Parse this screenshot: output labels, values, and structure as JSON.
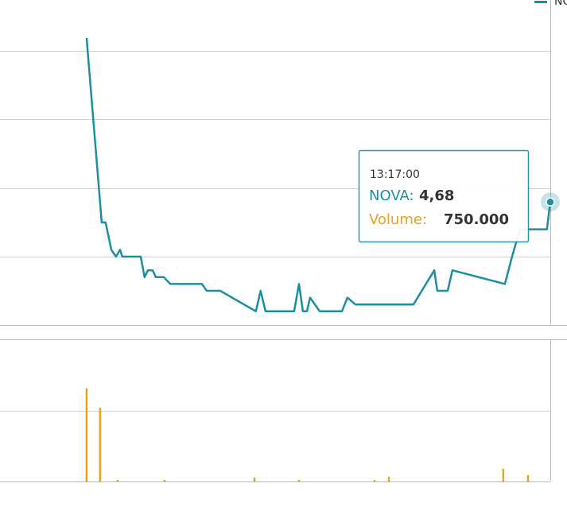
{
  "chart_data": [
    {
      "type": "line",
      "x": [
        570,
        577.4,
        578.6,
        579.3,
        582.1,
        584.4,
        586.4,
        587.5,
        596.5,
        598.4,
        600,
        602.3,
        603.9,
        607.8,
        610.9,
        626.5,
        628.8,
        635.4,
        652.9,
        655.2,
        657.6,
        660.7,
        671.6,
        674,
        675.9,
        677.9,
        679.4,
        684.1,
        695,
        697.7,
        701.6,
        730,
        740.2,
        741.7,
        746.8,
        749.1,
        774.8,
        778.3,
        782.2,
        786.1,
        791.9,
        795.4,
        797
      ],
      "series": [
        {
          "name": "NOVA",
          "color": "#1b8ea0",
          "values": [
            4.92,
            4.65,
            4.65,
            4.65,
            4.61,
            4.6,
            4.61,
            4.6,
            4.6,
            4.57,
            4.58,
            4.58,
            4.57,
            4.57,
            4.56,
            4.56,
            4.55,
            4.55,
            4.52,
            4.55,
            4.52,
            4.52,
            4.52,
            4.56,
            4.52,
            4.52,
            4.54,
            4.52,
            4.52,
            4.54,
            4.53,
            4.53,
            4.58,
            4.55,
            4.55,
            4.58,
            4.56,
            4.6,
            4.64,
            4.64,
            4.64,
            4.64,
            4.68
          ]
        }
      ],
      "xlim": [
        527.6,
        805.2
      ],
      "ylim": [
        4.5,
        4.94
      ]
    },
    {
      "type": "bar",
      "x": [
        570,
        576.6,
        585.2,
        608.2,
        652.2,
        674,
        711,
        718,
        774,
        786.1
      ],
      "series": [
        {
          "name": "Volume",
          "color": "#e8a317",
          "values": [
            11000000,
            8700000,
            190000,
            190000,
            470000,
            190000,
            190000,
            560000,
            1500000,
            750000
          ]
        }
      ],
      "xlim": [
        527.6,
        805.2
      ],
      "ylim": [
        0,
        16687500
      ]
    }
  ],
  "tooltip": {
    "time": "13:17:00",
    "series": "NOVA:",
    "value": "4,68",
    "volume_label": "Volume:",
    "volume": "750.000"
  }
}
